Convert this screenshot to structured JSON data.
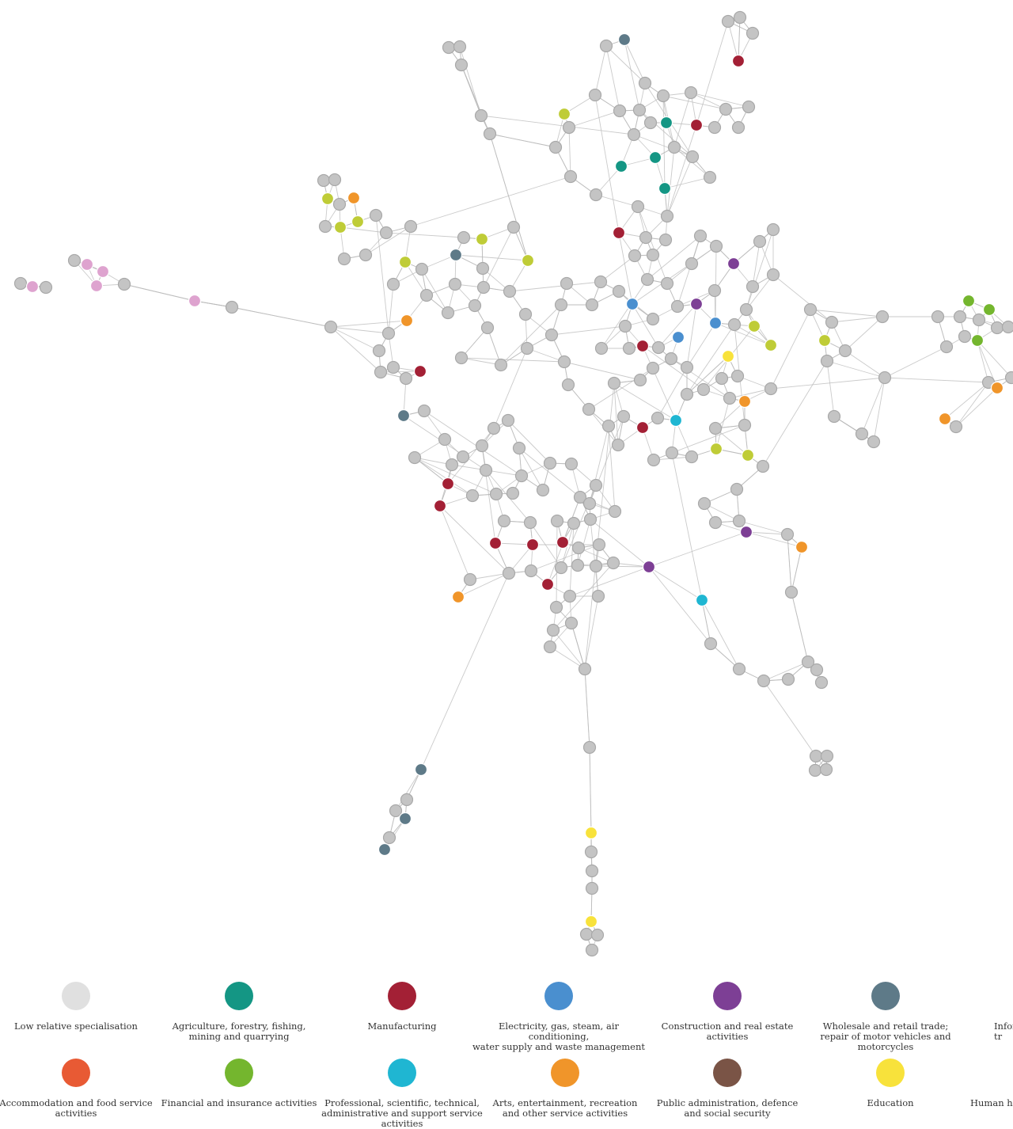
{
  "legend": [
    {
      "label": "Low relative specialisation",
      "color": "#e0e0e0"
    },
    {
      "label": "Agriculture, forestry, fishing,\nmining and quarrying",
      "color": "#149684"
    },
    {
      "label": "Manufacturing",
      "color": "#a32035"
    },
    {
      "label": "Electricity, gas, steam, air conditioning,\nwater supply and waste management",
      "color": "#4a8fcf"
    },
    {
      "label": "Construction and real estate\nactivities",
      "color": "#7d3f95"
    },
    {
      "label": "Wholesale and retail trade;\nrepair of motor vehicles and motorcycles",
      "color": "#5e7a88"
    },
    {
      "label": "Infor\ntr",
      "color": "#ffffff"
    },
    {
      "label": "Accommodation and food service\nactivities",
      "color": "#e85a34"
    },
    {
      "label": "Financial and insurance activities",
      "color": "#74b62e"
    },
    {
      "label": "Professional, scientific, technical,\nadministrative and support service activities",
      "color": "#1fb6d2"
    },
    {
      "label": "Arts, entertainment, recreation\nand  other service activities",
      "color": "#f0952a"
    },
    {
      "label": "Public administration, defence\nand social security",
      "color": "#7a5446"
    },
    {
      "label": "Education",
      "color": "#f8e23b"
    },
    {
      "label": "Human hea",
      "color": "#ffffff"
    }
  ],
  "network": {
    "node_fill_default": "#c4c4c4",
    "edge_color": "#b8b8b8",
    "category_colors": {
      "grey": "#c4c4c4",
      "teal": "#149684",
      "red": "#a32035",
      "blue": "#4a8fcf",
      "purple": "#7d3f95",
      "slate": "#5e7a88",
      "orange": "#f0952a",
      "lime": "#bfcc37",
      "green": "#74b62e",
      "cyan": "#1fb6d2",
      "yellow": "#f8e23b",
      "pink": "#dea3cf"
    }
  }
}
